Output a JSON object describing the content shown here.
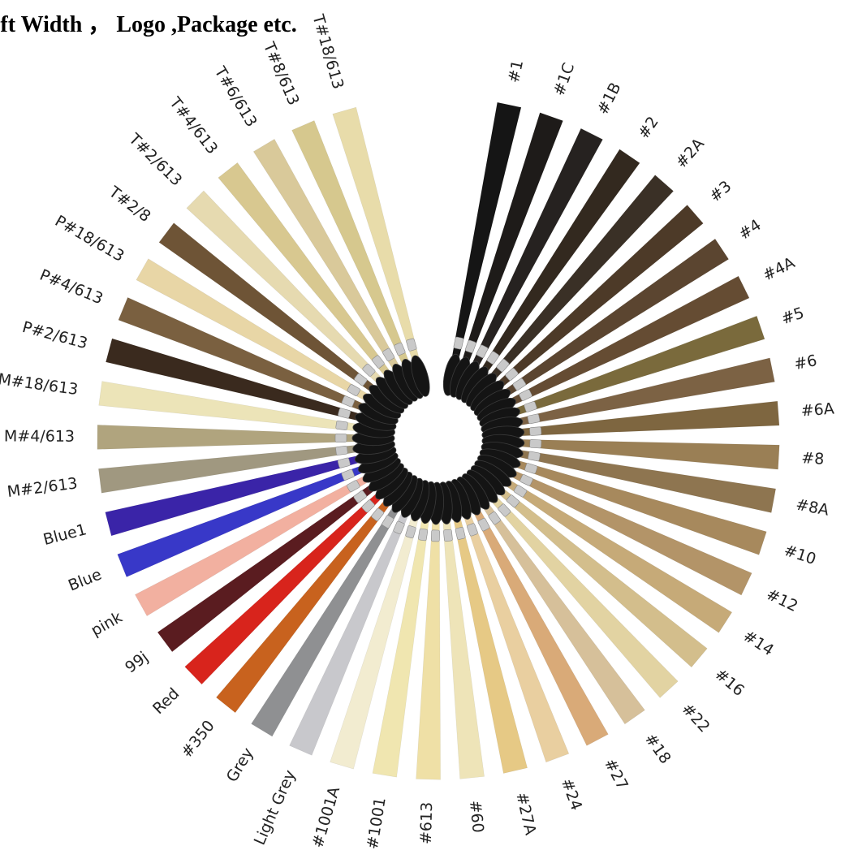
{
  "caption": "eft Width ， Logo ,Package etc.",
  "swatches": [
    {
      "label": "#1",
      "color": "#151515"
    },
    {
      "label": "#1C",
      "color": "#1e1b19"
    },
    {
      "label": "#1B",
      "color": "#262220"
    },
    {
      "label": "#2",
      "color": "#33291f"
    },
    {
      "label": "#2A",
      "color": "#3a3026"
    },
    {
      "label": "#3",
      "color": "#4d3a28"
    },
    {
      "label": "#4",
      "color": "#5b4530"
    },
    {
      "label": "#4A",
      "color": "#654c33"
    },
    {
      "label": "#5",
      "color": "#7a6a3c"
    },
    {
      "label": "#6",
      "color": "#7c6244"
    },
    {
      "label": "#6A",
      "color": "#7e6640"
    },
    {
      "label": "#8",
      "color": "#9a7f55"
    },
    {
      "label": "#8A",
      "color": "#8e7550"
    },
    {
      "label": "#10",
      "color": "#a7895d"
    },
    {
      "label": "#12",
      "color": "#b39468"
    },
    {
      "label": "#14",
      "color": "#c6aa78"
    },
    {
      "label": "#16",
      "color": "#d3be8c"
    },
    {
      "label": "#22",
      "color": "#e2d3a2"
    },
    {
      "label": "#18",
      "color": "#d6c09a"
    },
    {
      "label": "#27",
      "color": "#d9aa78"
    },
    {
      "label": "#24",
      "color": "#e9cfa0"
    },
    {
      "label": "#27A",
      "color": "#e6c985"
    },
    {
      "label": "#60",
      "color": "#eee4b8"
    },
    {
      "label": "#613",
      "color": "#efe0a6"
    },
    {
      "label": "#1001",
      "color": "#f0e6b0"
    },
    {
      "label": "#1001A",
      "color": "#f2ecd0"
    },
    {
      "label": "Light Grey",
      "color": "#c8c8cc"
    },
    {
      "label": "Grey",
      "color": "#8f9092"
    },
    {
      "label": "#350",
      "color": "#c8621e"
    },
    {
      "label": "Red",
      "color": "#d8241c"
    },
    {
      "label": "99j",
      "color": "#5a1c20"
    },
    {
      "label": "pink",
      "color": "#f2b0a0"
    },
    {
      "label": "Blue",
      "color": "#3838c8"
    },
    {
      "label": "Blue1",
      "color": "#3a24a8"
    },
    {
      "label": "M#2/613",
      "color": "#a09880"
    },
    {
      "label": "M#4/613",
      "color": "#b0a47e"
    },
    {
      "label": "M#18/613",
      "color": "#ece4b8"
    },
    {
      "label": "P#2/613",
      "color": "#3a2a1e"
    },
    {
      "label": "P#4/613",
      "color": "#7a6040"
    },
    {
      "label": "P#18/613",
      "color": "#e8d6a6"
    },
    {
      "label": "T#2/8",
      "color": "#6e5436"
    },
    {
      "label": "T#2/613",
      "color": "#e6dab0"
    },
    {
      "label": "T#4/613",
      "color": "#d8c890"
    },
    {
      "label": "T#6/613",
      "color": "#d9c99a"
    },
    {
      "label": "T#8/613",
      "color": "#d6c88e"
    },
    {
      "label": "T#18/613",
      "color": "#e8dcaa"
    }
  ]
}
